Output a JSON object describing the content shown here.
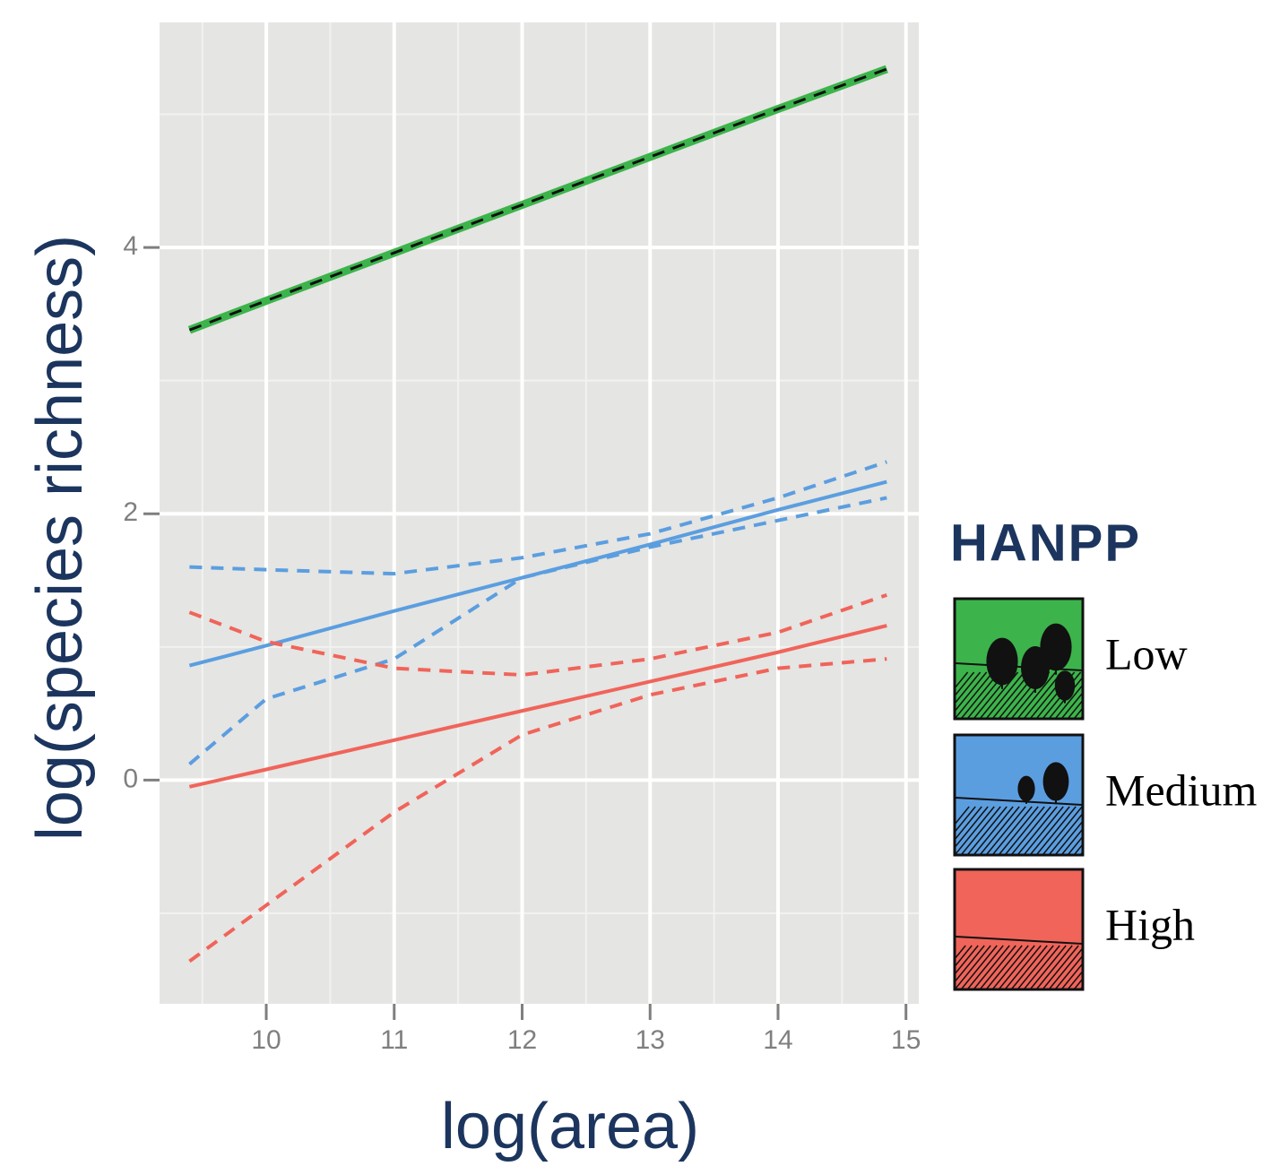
{
  "chart_data": {
    "type": "line",
    "x_label": "log(area)",
    "y_label": "log(species richness)",
    "legend_title": "HANPP",
    "x": [
      9.4,
      10,
      11,
      12,
      13,
      14,
      14.85
    ],
    "xlim": [
      9.166,
      15.1
    ],
    "xticks": [
      10,
      11,
      12,
      13,
      14,
      15
    ],
    "ylim": [
      -1.68,
      5.69
    ],
    "yticks": [
      0,
      2,
      4
    ],
    "grid": true,
    "series": [
      {
        "name": "Low",
        "color": "#3cb44b",
        "values": [
          3.38,
          3.6,
          3.96,
          4.32,
          4.68,
          5.04,
          5.34
        ]
      },
      {
        "name": "Medium",
        "color": "#5b9ee0",
        "values": [
          0.86,
          1.01,
          1.27,
          1.52,
          1.77,
          2.03,
          2.24
        ],
        "upper": [
          1.6,
          1.58,
          1.55,
          1.67,
          1.85,
          2.12,
          2.39
        ],
        "lower": [
          0.12,
          0.61,
          0.91,
          1.52,
          1.75,
          1.95,
          2.12
        ]
      },
      {
        "name": "High",
        "color": "#f0645a",
        "values": [
          -0.05,
          0.08,
          0.3,
          0.52,
          0.74,
          0.96,
          1.16
        ],
        "upper": [
          1.26,
          1.04,
          0.84,
          0.79,
          0.91,
          1.11,
          1.39
        ],
        "lower": [
          -1.36,
          -0.94,
          -0.24,
          0.34,
          0.64,
          0.84,
          0.91
        ]
      }
    ]
  }
}
